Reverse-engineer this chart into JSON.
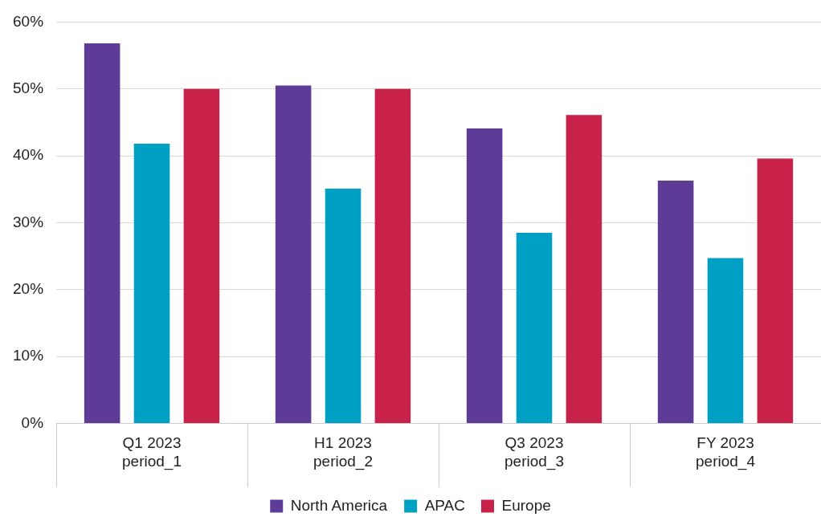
{
  "chart_data": {
    "type": "bar",
    "categories": [
      "Q1 2023\nperiod_1",
      "H1 2023\nperiod_2",
      "Q3 2023\nperiod_3",
      "FY 2023\nperiod_4"
    ],
    "series": [
      {
        "name": "North America",
        "color": "#5e3b96",
        "values": [
          56.8,
          50.5,
          44.1,
          36.3
        ]
      },
      {
        "name": "APAC",
        "color": "#009fc4",
        "values": [
          41.8,
          35.1,
          28.5,
          24.7
        ]
      },
      {
        "name": "Europe",
        "color": "#c8224a",
        "values": [
          50,
          50,
          46.1,
          39.6
        ]
      }
    ],
    "ylim": [
      0,
      60
    ],
    "yticks": [
      {
        "value": 0,
        "label": "0%"
      },
      {
        "value": 10,
        "label": "10%"
      },
      {
        "value": 20,
        "label": "20%"
      },
      {
        "value": 30,
        "label": "30%"
      },
      {
        "value": 40,
        "label": "40%"
      },
      {
        "value": 50,
        "label": "50%"
      },
      {
        "value": 60,
        "label": "60%"
      }
    ],
    "grid": "y",
    "legend": "bottom"
  }
}
